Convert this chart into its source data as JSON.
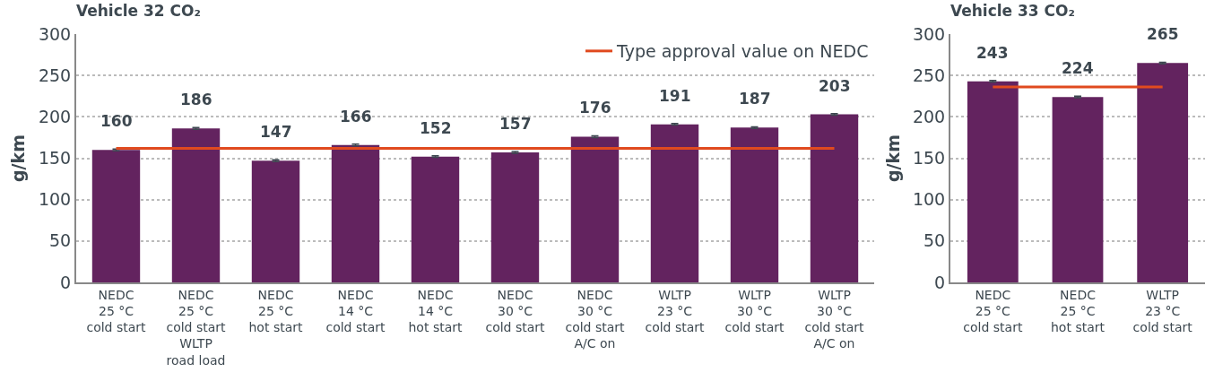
{
  "chart_data": [
    {
      "type": "bar",
      "title": "Vehicle 32 CO₂",
      "ylabel": "g/km",
      "categories": [
        "NEDC\n25 °C\ncold start",
        "NEDC\n25 °C\ncold start\nWLTP\nroad load",
        "NEDC\n25 °C\nhot start",
        "NEDC\n14 °C\ncold start",
        "NEDC\n14 °C\nhot start",
        "NEDC\n30 °C\ncold start",
        "NEDC\n30 °C\ncold start\nA/C on",
        "WLTP\n23 °C\ncold start",
        "WLTP\n30 °C\ncold start",
        "WLTP\n30 °C\ncold start\nA/C on"
      ],
      "values": [
        160,
        186,
        147,
        166,
        152,
        157,
        176,
        191,
        187,
        203
      ],
      "errors": [
        1,
        1,
        1,
        1,
        1,
        1,
        1,
        1,
        1,
        1
      ],
      "color": "#63235f",
      "data_labels": true,
      "ylim": [
        0,
        300
      ],
      "yticks": [
        0,
        50,
        100,
        150,
        200,
        250,
        300
      ],
      "grid": "y",
      "legend": "top right",
      "ref_lines": [
        {
          "axis": "y",
          "value": 162,
          "label": "Type approval value on NEDC",
          "color": "#e04a1f"
        }
      ]
    },
    {
      "type": "bar",
      "title": "Vehicle 33 CO₂",
      "ylabel": "g/km",
      "categories": [
        "NEDC\n25 °C\ncold start",
        "NEDC\n25 °C\nhot start",
        "WLTP\n23 °C\ncold start"
      ],
      "values": [
        243,
        224,
        265
      ],
      "errors": [
        1,
        1,
        1
      ],
      "color": "#63235f",
      "data_labels": true,
      "ylim": [
        0,
        300
      ],
      "yticks": [
        0,
        50,
        100,
        150,
        200,
        250,
        300
      ],
      "grid": "y",
      "legend": false,
      "ref_lines": [
        {
          "axis": "y",
          "value": 236,
          "color": "#e04a1f"
        }
      ]
    }
  ]
}
